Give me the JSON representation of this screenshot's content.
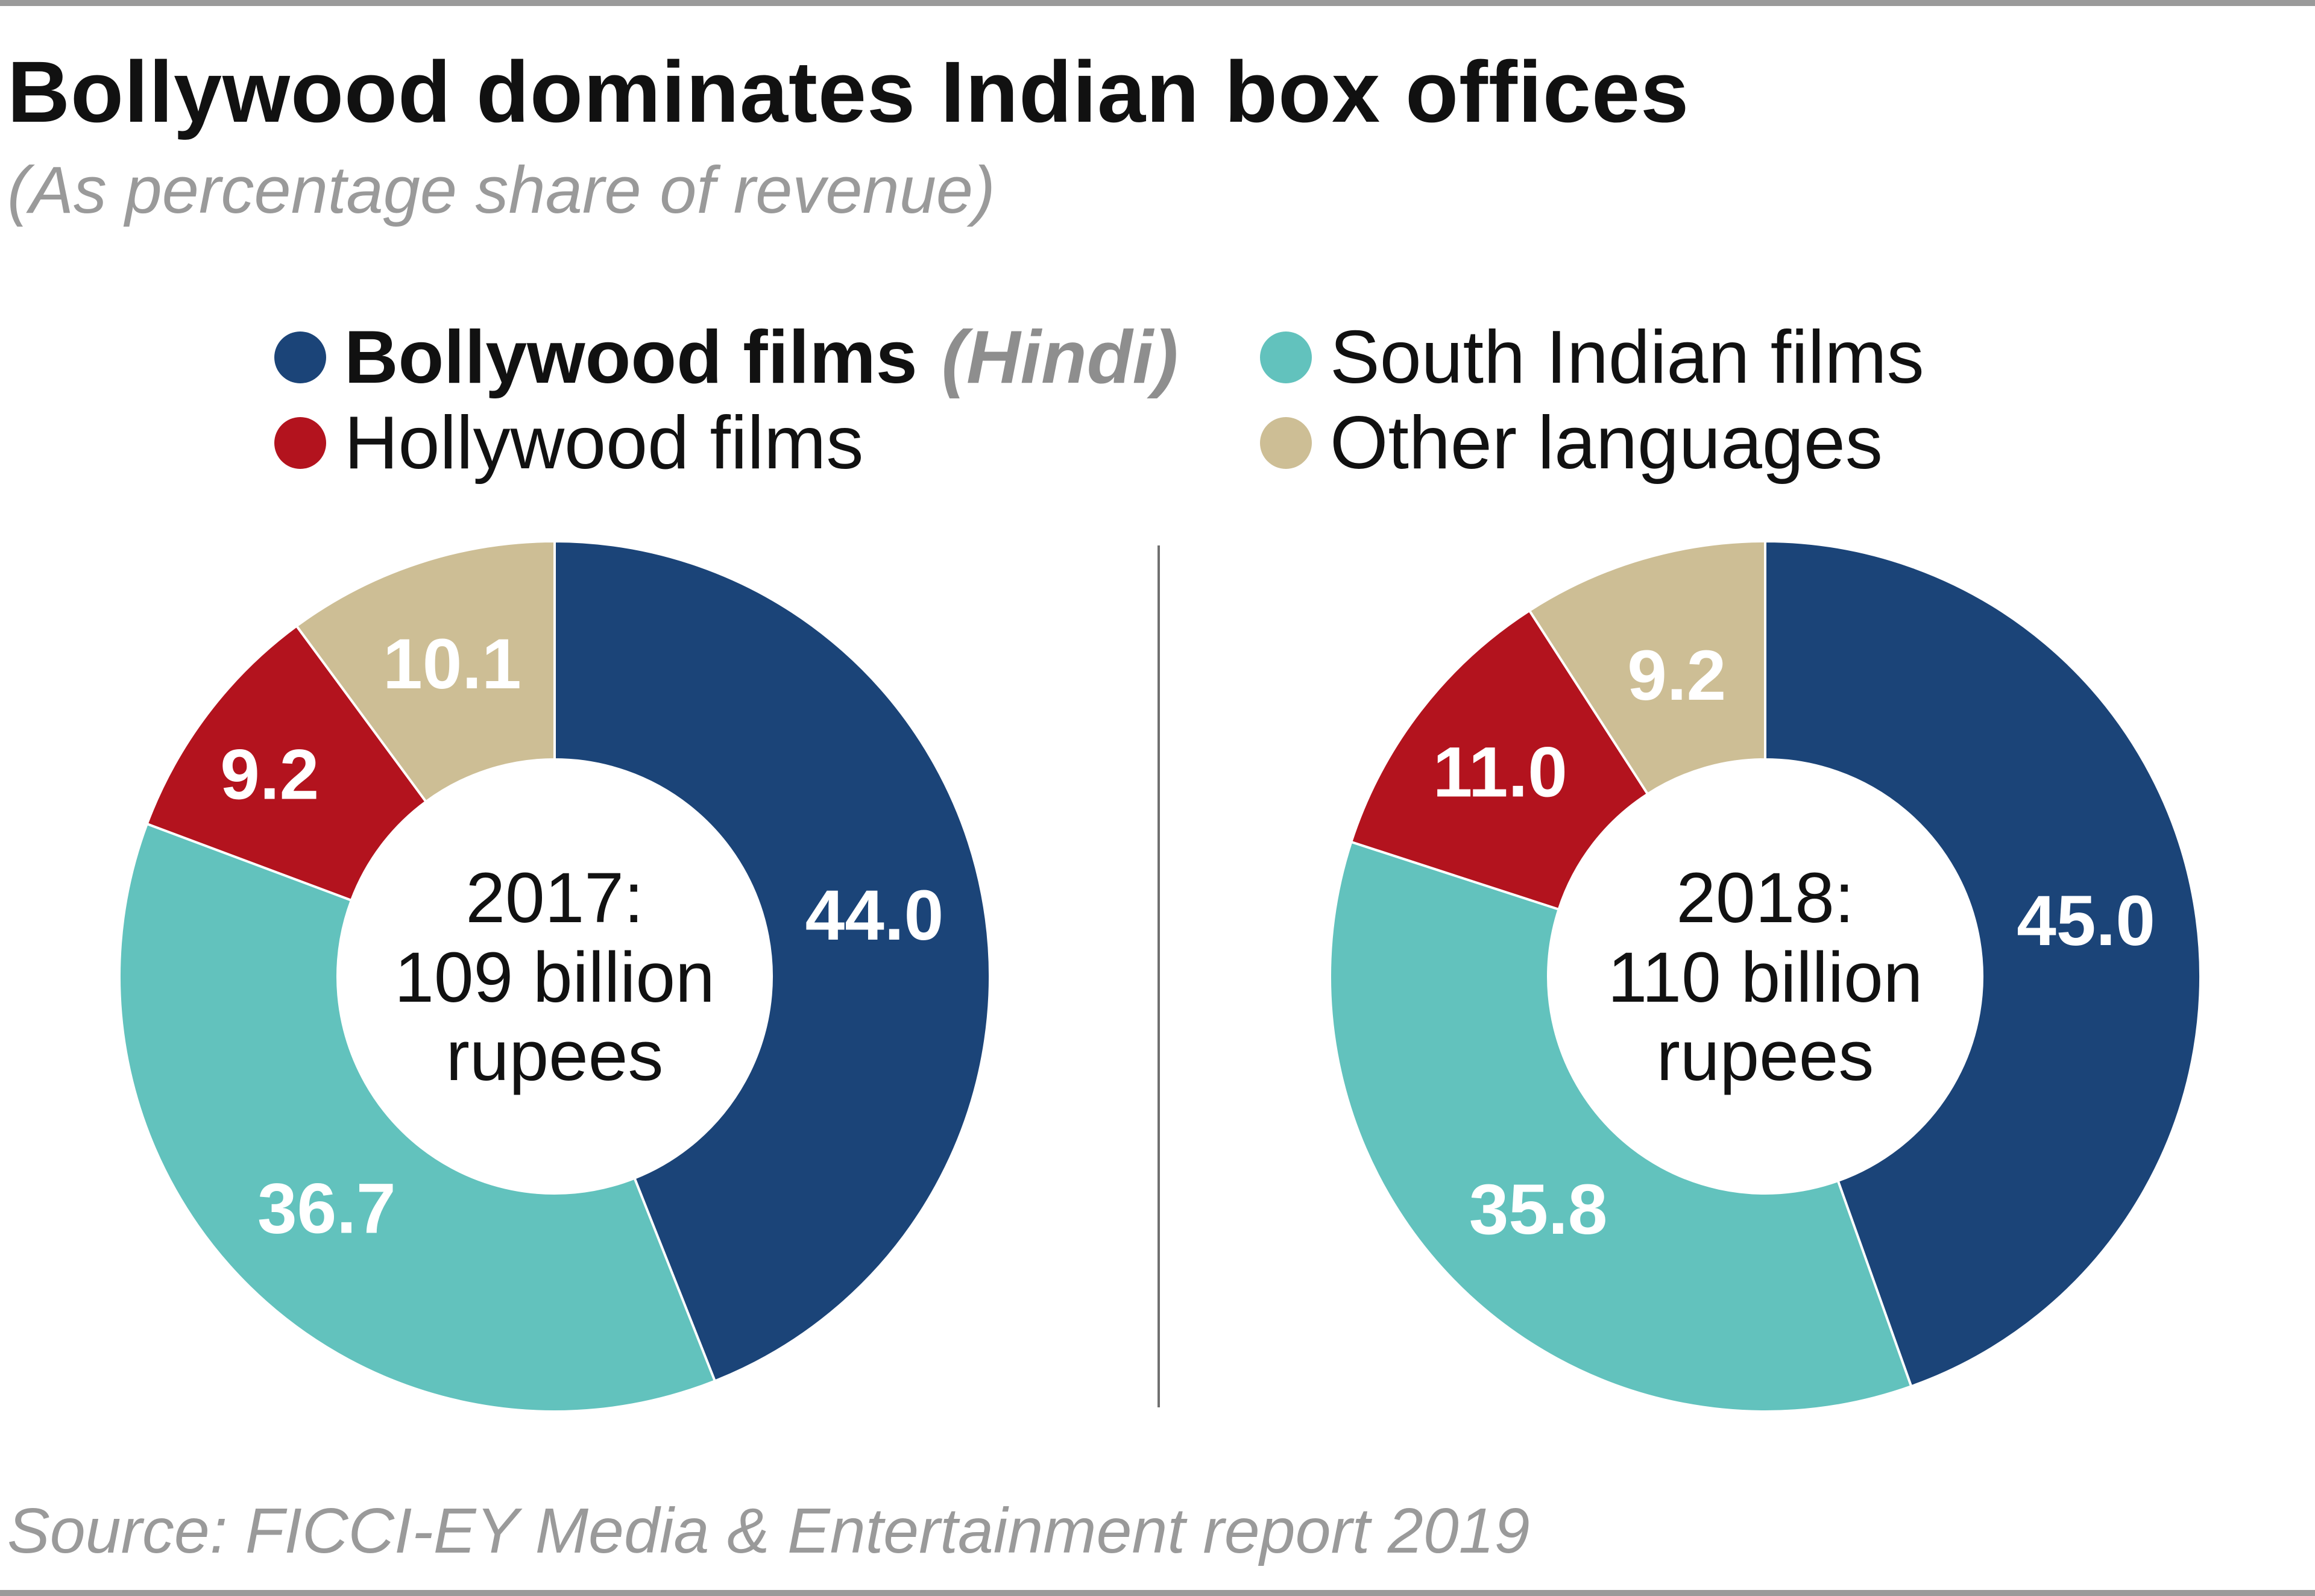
{
  "title": "Bollywood dominates Indian box offices",
  "subtitle": "(As percentage share of revenue)",
  "legend": [
    {
      "label": "Bollywood films",
      "qualifier": "(Hindi)",
      "color": "#1b4478"
    },
    {
      "label": "South Indian films",
      "color": "#62c2bd"
    },
    {
      "label": "Hollywood films",
      "color": "#b3131e"
    },
    {
      "label": "Other languages",
      "color": "#cdbe95"
    }
  ],
  "source": "Source: FICCI-EY Media & Entertainment report 2019",
  "chart_data": [
    {
      "type": "pie",
      "style": "donut",
      "year_label": "2017:",
      "total_line1": "109 billion",
      "total_line2": "rupees",
      "categories": [
        "Bollywood films (Hindi)",
        "South Indian films",
        "Hollywood films",
        "Other languages"
      ],
      "values": [
        44.0,
        36.7,
        9.2,
        10.1
      ],
      "labels": [
        "44.0",
        "36.7",
        "9.2",
        "10.1"
      ],
      "colors": [
        "#1b4478",
        "#62c2bd",
        "#b3131e",
        "#cdbe95"
      ]
    },
    {
      "type": "pie",
      "style": "donut",
      "year_label": "2018:",
      "total_line1": "110 billion",
      "total_line2": "rupees",
      "categories": [
        "Bollywood films (Hindi)",
        "South Indian films",
        "Hollywood films",
        "Other languages"
      ],
      "values": [
        45.0,
        35.8,
        11.0,
        9.2
      ],
      "labels": [
        "45.0",
        "35.8",
        "11.0",
        "9.2"
      ],
      "colors": [
        "#1b4478",
        "#62c2bd",
        "#b3131e",
        "#cdbe95"
      ]
    }
  ]
}
